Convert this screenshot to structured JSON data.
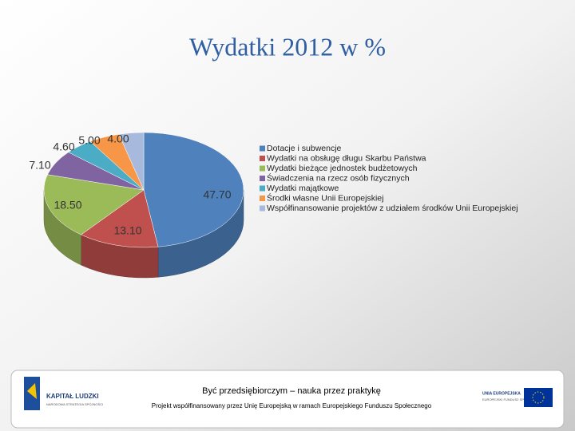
{
  "chart_data": {
    "type": "pie3d",
    "title": "Wydatki 2012 w %",
    "categories": [
      "Dotacje i subwencje",
      "Wydatki na obsługę długu Skarbu Państwa",
      "Wydatki bieżące jednostek budżetowych",
      "Świadczenia na rzecz osób fizycznych",
      "Wydatki majątkowe",
      "Środki własne Unii Europejskiej",
      "Współfinansowanie projektów z udziałem środków Unii Europejskiej"
    ],
    "values": [
      47.7,
      13.1,
      18.5,
      7.1,
      4.6,
      5.0,
      4.0
    ],
    "value_labels": [
      "47.70",
      "13.10",
      "18.50",
      "7.10",
      "4.60",
      "5.00",
      "4.00"
    ],
    "colors": [
      "#4f81bd",
      "#c0504d",
      "#9bbb59",
      "#8064a2",
      "#4bacc6",
      "#f79646",
      "#a7b9dc"
    ],
    "legend": "right"
  },
  "footer": {
    "slogan": "Być przedsiębiorczym – nauka przez praktykę",
    "note": "Projekt współfinansowany przez Unię Europejską w ramach Europejskiego Funduszu Społecznego",
    "logo_left": "KAPITAŁ LUDZKI",
    "logo_left_sub": "NARODOWA STRATEGIA SPÓJNOŚCI",
    "logo_right": "UNIA EUROPEJSKA",
    "logo_right_sub": "EUROPEJSKI FUNDUSZ SPOŁECZNY"
  }
}
